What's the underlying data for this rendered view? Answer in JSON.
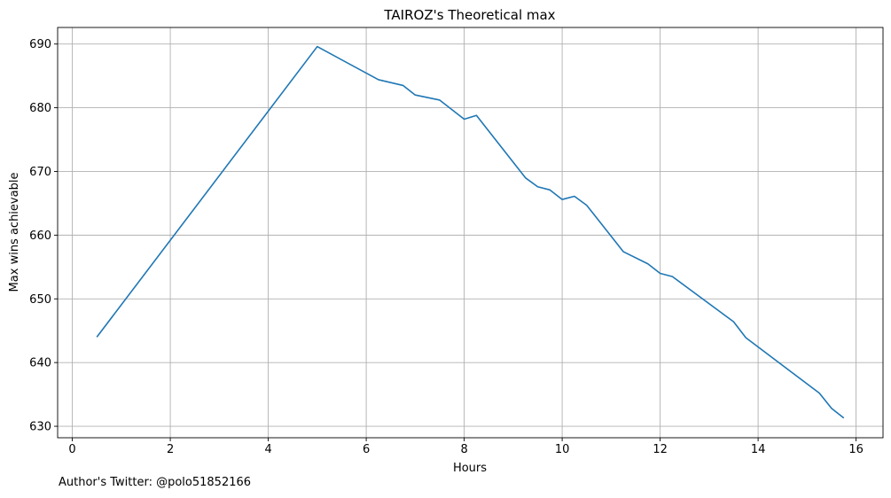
{
  "chart_data": {
    "type": "line",
    "title": "TAIROZ's Theoretical max",
    "xlabel": "Hours",
    "ylabel": "Max wins achievable",
    "xlim": [
      -0.3,
      16.55
    ],
    "ylim": [
      628.2,
      692.6
    ],
    "xticks": [
      0,
      2,
      4,
      6,
      8,
      10,
      12,
      14,
      16
    ],
    "yticks": [
      630,
      640,
      650,
      660,
      670,
      680,
      690
    ],
    "grid": true,
    "line_color": "#1f77b4",
    "series": [
      {
        "x": [
          0.5,
          5.0,
          6.25,
          6.75,
          7.0,
          7.5,
          8.0,
          8.25,
          9.25,
          9.5,
          9.75,
          10.0,
          10.25,
          10.5,
          11.25,
          11.75,
          12.0,
          12.25,
          13.5,
          13.75,
          15.25,
          15.5,
          15.75
        ],
        "y": [
          644.0,
          689.6,
          684.4,
          683.5,
          682.0,
          681.2,
          678.2,
          678.8,
          669.0,
          667.6,
          667.1,
          665.6,
          666.1,
          664.7,
          657.4,
          655.5,
          654.0,
          653.5,
          646.4,
          643.9,
          635.2,
          632.8,
          631.3
        ]
      }
    ]
  },
  "footnote": "Author's Twitter: @polo51852166"
}
